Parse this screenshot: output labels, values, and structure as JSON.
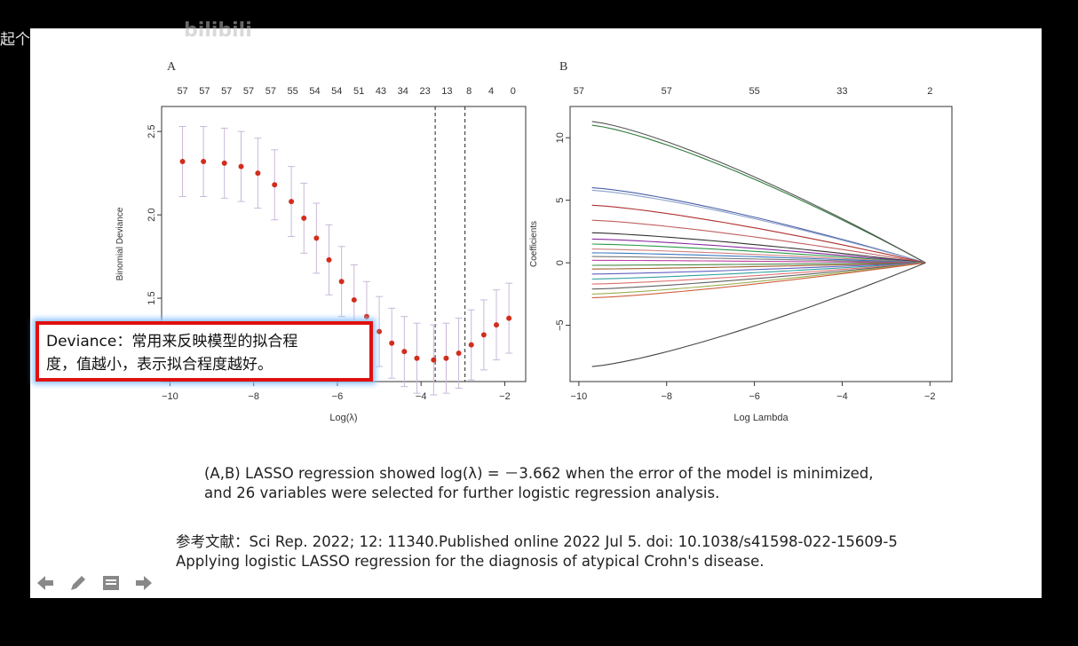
{
  "watermark": {
    "text": "起个网名太难",
    "logo": "bilibili"
  },
  "panel_a": {
    "label": "A"
  },
  "panel_b": {
    "label": "B"
  },
  "callout": {
    "line1": "Deviance：常用来反映模型的拟合程",
    "line2": "度，值越小，表示拟合程度越好。"
  },
  "caption": {
    "line1": "(A,B) LASSO regression showed log(λ) = －3.662 when the error of the model is minimized,",
    "line2": "and 26 variables were selected for further logistic regression analysis."
  },
  "reference": {
    "line1": "参考文献：Sci Rep. 2022; 12: 11340.Published online 2022 Jul 5. doi: 10.1038/s41598-022-15609-5",
    "line2": "Applying logistic LASSO regression for the diagnosis of atypical Crohn's disease."
  },
  "nav": {
    "icons": [
      "back-arrow-icon",
      "pen-icon",
      "menu-icon",
      "forward-arrow-icon"
    ]
  },
  "colors": {
    "points": "#d22d1d",
    "errorbar": "#c8b8d8",
    "callout_border": "#e01010"
  },
  "chart_data": [
    {
      "type": "line",
      "id": "cv-deviance",
      "xlabel": "Log(λ)",
      "ylabel": "Binomial Deviance",
      "xlim": [
        -10.2,
        -1.5
      ],
      "ylim": [
        1.0,
        2.65
      ],
      "x_ticks": [
        -10,
        -8,
        -6,
        -4,
        -2
      ],
      "y_ticks": [
        1.5,
        2.0,
        2.5
      ],
      "top_ticks": [
        "57",
        "57",
        "57",
        "57",
        "57",
        "55",
        "54",
        "54",
        "51",
        "43",
        "34",
        "23",
        "13",
        "8",
        "4",
        "0"
      ],
      "vlines": [
        -3.662,
        -2.95
      ],
      "points": [
        [
          -9.7,
          2.32
        ],
        [
          -9.2,
          2.32
        ],
        [
          -8.7,
          2.31
        ],
        [
          -8.3,
          2.29
        ],
        [
          -7.9,
          2.25
        ],
        [
          -7.5,
          2.18
        ],
        [
          -7.1,
          2.08
        ],
        [
          -6.8,
          1.98
        ],
        [
          -6.5,
          1.86
        ],
        [
          -6.2,
          1.73
        ],
        [
          -5.9,
          1.6
        ],
        [
          -5.6,
          1.49
        ],
        [
          -5.3,
          1.39
        ],
        [
          -5.0,
          1.3
        ],
        [
          -4.7,
          1.23
        ],
        [
          -4.4,
          1.18
        ],
        [
          -4.1,
          1.14
        ],
        [
          -3.7,
          1.13
        ],
        [
          -3.4,
          1.14
        ],
        [
          -3.1,
          1.17
        ],
        [
          -2.8,
          1.22
        ],
        [
          -2.5,
          1.28
        ],
        [
          -2.2,
          1.34
        ],
        [
          -1.9,
          1.38
        ]
      ],
      "err": 0.21
    },
    {
      "type": "line",
      "id": "coef-path",
      "xlabel": "Log Lambda",
      "ylabel": "Coefficients",
      "xlim": [
        -10.2,
        -1.5
      ],
      "ylim": [
        -9.5,
        12.5
      ],
      "x_ticks": [
        -10,
        -8,
        -6,
        -4,
        -2
      ],
      "y_ticks": [
        -5,
        0,
        5,
        10
      ],
      "top_ticks": [
        {
          "x": -10,
          "label": "57"
        },
        {
          "x": -8,
          "label": "57"
        },
        {
          "x": -6,
          "label": "55"
        },
        {
          "x": -4,
          "label": "33"
        },
        {
          "x": -2,
          "label": "2"
        }
      ],
      "paths": [
        [
          11.0,
          "#2e7a3a"
        ],
        [
          11.3,
          "#555"
        ],
        [
          6.0,
          "#4a5fa8"
        ],
        [
          5.8,
          "#8aa0c8"
        ],
        [
          4.6,
          "#b03030"
        ],
        [
          3.4,
          "#c06060"
        ],
        [
          2.4,
          "#333"
        ],
        [
          1.9,
          "#8a2ba0"
        ],
        [
          1.5,
          "#2a9a4a"
        ],
        [
          1.1,
          "#d08080"
        ],
        [
          0.8,
          "#3a7ac0"
        ],
        [
          0.5,
          "#777"
        ],
        [
          0.2,
          "#c040a0"
        ],
        [
          -0.2,
          "#4a8a4a"
        ],
        [
          -0.5,
          "#a06030"
        ],
        [
          -0.9,
          "#6060c0"
        ],
        [
          -1.3,
          "#30a0a0"
        ],
        [
          -1.7,
          "#e07070"
        ],
        [
          -2.1,
          "#606060"
        ],
        [
          -2.5,
          "#9ab050"
        ],
        [
          -2.8,
          "#d06040"
        ],
        [
          -8.3,
          "#444"
        ]
      ]
    }
  ]
}
